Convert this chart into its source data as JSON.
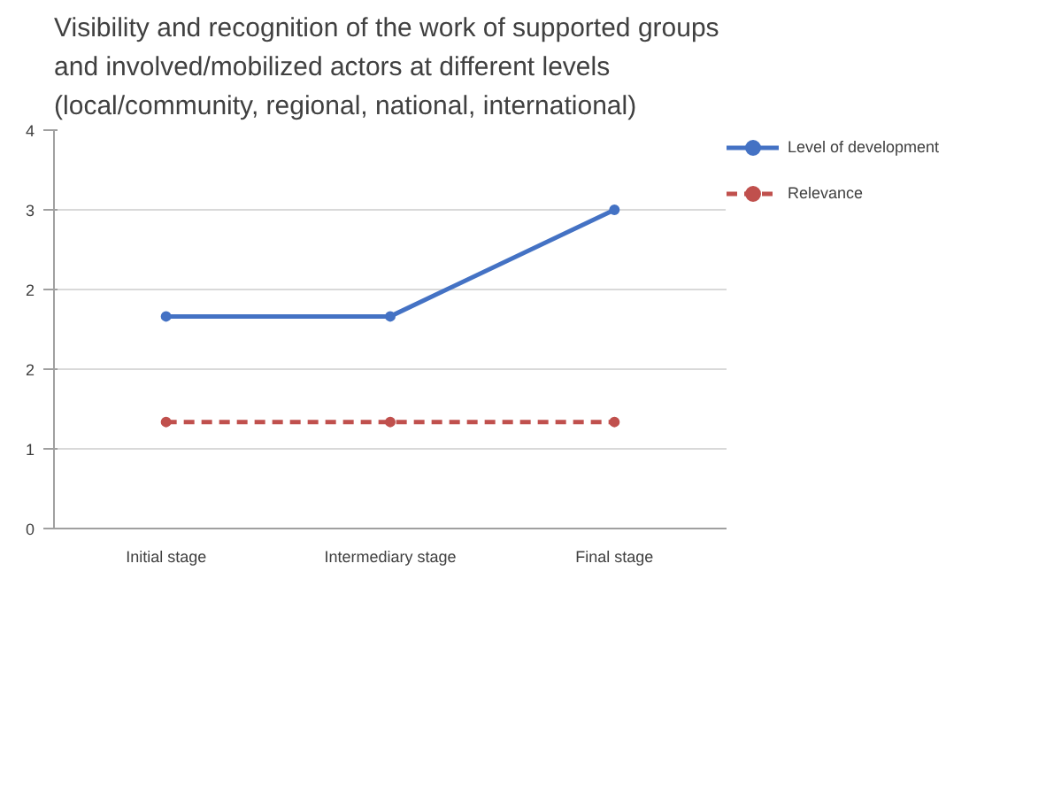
{
  "chart_data": {
    "type": "line",
    "title": "Visibility and recognition of the work of  supported groups\nand involved/mobilized actors  at different levels\n(local/community, regional, national, international)",
    "categories": [
      "Initial stage",
      "Intermediary stage",
      "Final stage"
    ],
    "series": [
      {
        "name": "Level of development",
        "color": "#4472c4",
        "values": [
          2.13,
          2.13,
          3.2
        ],
        "marker": "circle",
        "line_style": "solid"
      },
      {
        "name": "Relevance",
        "color": "#c0504d",
        "values": [
          1.07,
          1.07,
          1.07
        ],
        "marker": "circle",
        "line_style": "dashed"
      }
    ],
    "ylim": [
      0,
      4
    ],
    "yticks": [
      0,
      {
        "value": 0.8,
        "label": "1"
      },
      {
        "value": 1.6,
        "label": "2"
      },
      {
        "value": 2.4,
        "label": "2"
      },
      {
        "value": 3.2,
        "label": "3"
      },
      4
    ],
    "grid": "y",
    "legend": "right"
  }
}
